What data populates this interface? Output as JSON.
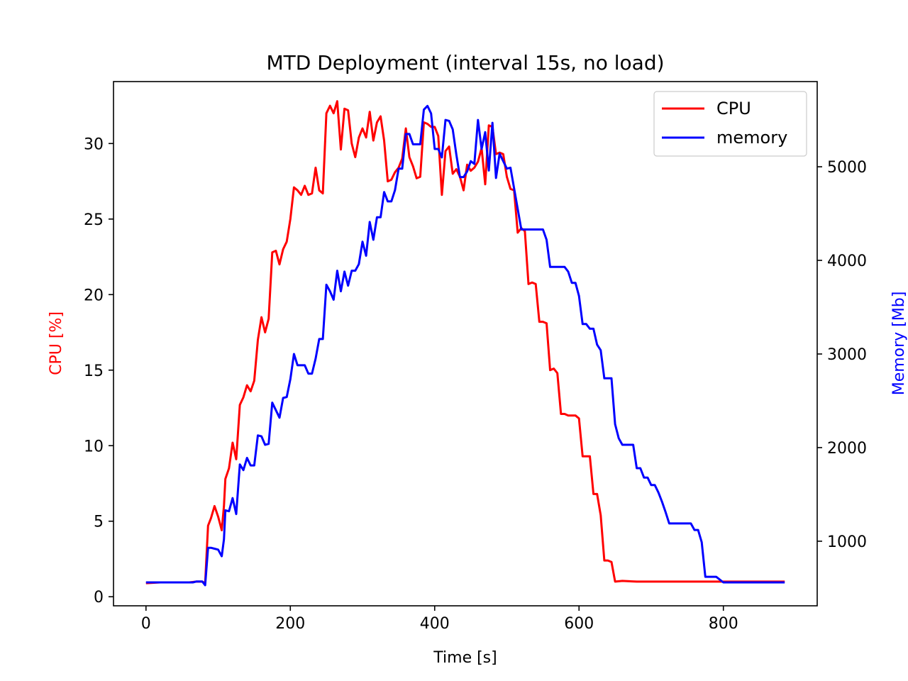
{
  "chart_data": {
    "type": "line",
    "title": "MTD Deployment (interval 15s, no load)",
    "xlabel": "Time [s]",
    "ylabel_left": "CPU [%]",
    "ylabel_right": "Memory [Mb]",
    "xlim": [
      -45,
      930
    ],
    "ylim_left": [
      -0.6,
      34.1
    ],
    "ylim_right": [
      310,
      5910
    ],
    "x_ticks": [
      0,
      200,
      400,
      600,
      800
    ],
    "y_ticks_left": [
      0,
      5,
      10,
      15,
      20,
      25,
      30
    ],
    "y_ticks_right": [
      1000,
      2000,
      3000,
      4000,
      5000
    ],
    "legend_position": "top-right",
    "grid": false,
    "series": [
      {
        "name": "CPU",
        "axis": "left",
        "color": "#ff0000",
        "points": [
          [
            0,
            0.9
          ],
          [
            20,
            0.95
          ],
          [
            40,
            0.95
          ],
          [
            60,
            0.95
          ],
          [
            70,
            1.0
          ],
          [
            78,
            1.0
          ],
          [
            82,
            0.9
          ],
          [
            86,
            4.7
          ],
          [
            90,
            5.2
          ],
          [
            95,
            6.0
          ],
          [
            100,
            5.3
          ],
          [
            105,
            4.4
          ],
          [
            108,
            6.0
          ],
          [
            110,
            7.8
          ],
          [
            115,
            8.5
          ],
          [
            120,
            10.2
          ],
          [
            125,
            9.1
          ],
          [
            130,
            12.7
          ],
          [
            135,
            13.2
          ],
          [
            140,
            14.0
          ],
          [
            145,
            13.6
          ],
          [
            150,
            14.3
          ],
          [
            155,
            17.0
          ],
          [
            160,
            18.5
          ],
          [
            165,
            17.5
          ],
          [
            170,
            18.4
          ],
          [
            175,
            22.8
          ],
          [
            180,
            22.9
          ],
          [
            185,
            22.0
          ],
          [
            190,
            23.0
          ],
          [
            195,
            23.5
          ],
          [
            200,
            25.0
          ],
          [
            205,
            27.1
          ],
          [
            210,
            26.9
          ],
          [
            215,
            26.6
          ],
          [
            220,
            27.2
          ],
          [
            225,
            26.6
          ],
          [
            230,
            26.7
          ],
          [
            235,
            28.4
          ],
          [
            240,
            26.9
          ],
          [
            245,
            26.7
          ],
          [
            250,
            32.0
          ],
          [
            255,
            32.5
          ],
          [
            260,
            32.0
          ],
          [
            265,
            32.8
          ],
          [
            270,
            29.6
          ],
          [
            275,
            32.3
          ],
          [
            280,
            32.2
          ],
          [
            285,
            30.0
          ],
          [
            290,
            29.1
          ],
          [
            295,
            30.4
          ],
          [
            300,
            31.0
          ],
          [
            305,
            30.4
          ],
          [
            310,
            32.1
          ],
          [
            315,
            30.2
          ],
          [
            320,
            31.4
          ],
          [
            325,
            31.8
          ],
          [
            330,
            30.2
          ],
          [
            335,
            27.5
          ],
          [
            340,
            27.6
          ],
          [
            345,
            28.1
          ],
          [
            350,
            28.4
          ],
          [
            355,
            29.0
          ],
          [
            360,
            31.0
          ],
          [
            365,
            29.1
          ],
          [
            370,
            28.5
          ],
          [
            375,
            27.7
          ],
          [
            380,
            27.8
          ],
          [
            385,
            31.4
          ],
          [
            390,
            31.3
          ],
          [
            395,
            31.1
          ],
          [
            400,
            31.1
          ],
          [
            405,
            30.5
          ],
          [
            410,
            26.6
          ],
          [
            415,
            29.5
          ],
          [
            420,
            29.8
          ],
          [
            425,
            28.0
          ],
          [
            430,
            28.3
          ],
          [
            435,
            27.8
          ],
          [
            440,
            26.9
          ],
          [
            445,
            28.6
          ],
          [
            450,
            28.2
          ],
          [
            455,
            28.4
          ],
          [
            460,
            28.8
          ],
          [
            465,
            29.7
          ],
          [
            470,
            27.3
          ],
          [
            475,
            31.2
          ],
          [
            480,
            31.1
          ],
          [
            485,
            29.3
          ],
          [
            490,
            29.4
          ],
          [
            495,
            29.3
          ],
          [
            500,
            27.8
          ],
          [
            505,
            27.0
          ],
          [
            510,
            26.9
          ],
          [
            515,
            24.1
          ],
          [
            520,
            24.4
          ],
          [
            525,
            24.2
          ],
          [
            530,
            20.7
          ],
          [
            535,
            20.8
          ],
          [
            540,
            20.7
          ],
          [
            545,
            18.2
          ],
          [
            550,
            18.2
          ],
          [
            555,
            18.1
          ],
          [
            560,
            15.0
          ],
          [
            565,
            15.1
          ],
          [
            570,
            14.8
          ],
          [
            575,
            12.1
          ],
          [
            580,
            12.1
          ],
          [
            585,
            12.0
          ],
          [
            590,
            12.0
          ],
          [
            595,
            12.0
          ],
          [
            600,
            11.8
          ],
          [
            605,
            9.3
          ],
          [
            610,
            9.3
          ],
          [
            615,
            9.3
          ],
          [
            620,
            6.8
          ],
          [
            625,
            6.8
          ],
          [
            630,
            5.4
          ],
          [
            635,
            2.4
          ],
          [
            640,
            2.4
          ],
          [
            645,
            2.3
          ],
          [
            650,
            1.0
          ],
          [
            660,
            1.05
          ],
          [
            680,
            1.0
          ],
          [
            700,
            1.0
          ],
          [
            720,
            1.0
          ],
          [
            740,
            1.0
          ],
          [
            760,
            1.0
          ],
          [
            780,
            1.0
          ],
          [
            800,
            1.0
          ],
          [
            820,
            1.0
          ],
          [
            840,
            1.0
          ],
          [
            860,
            1.0
          ],
          [
            885,
            1.0
          ]
        ]
      },
      {
        "name": "memory",
        "axis": "right",
        "color": "#0000ff",
        "points": [
          [
            0,
            560
          ],
          [
            20,
            560
          ],
          [
            40,
            560
          ],
          [
            60,
            560
          ],
          [
            65,
            560
          ],
          [
            70,
            570
          ],
          [
            78,
            570
          ],
          [
            82,
            530
          ],
          [
            86,
            930
          ],
          [
            90,
            930
          ],
          [
            95,
            920
          ],
          [
            100,
            910
          ],
          [
            105,
            840
          ],
          [
            108,
            1020
          ],
          [
            110,
            1330
          ],
          [
            115,
            1320
          ],
          [
            120,
            1460
          ],
          [
            125,
            1290
          ],
          [
            130,
            1820
          ],
          [
            135,
            1760
          ],
          [
            140,
            1890
          ],
          [
            145,
            1810
          ],
          [
            150,
            1810
          ],
          [
            155,
            2130
          ],
          [
            160,
            2120
          ],
          [
            165,
            2030
          ],
          [
            170,
            2040
          ],
          [
            175,
            2480
          ],
          [
            180,
            2400
          ],
          [
            185,
            2320
          ],
          [
            190,
            2530
          ],
          [
            195,
            2540
          ],
          [
            200,
            2730
          ],
          [
            205,
            3000
          ],
          [
            210,
            2880
          ],
          [
            215,
            2880
          ],
          [
            220,
            2880
          ],
          [
            225,
            2790
          ],
          [
            230,
            2790
          ],
          [
            235,
            2950
          ],
          [
            240,
            3160
          ],
          [
            245,
            3160
          ],
          [
            250,
            3740
          ],
          [
            255,
            3670
          ],
          [
            260,
            3580
          ],
          [
            265,
            3890
          ],
          [
            270,
            3670
          ],
          [
            275,
            3880
          ],
          [
            280,
            3730
          ],
          [
            285,
            3890
          ],
          [
            290,
            3890
          ],
          [
            295,
            3960
          ],
          [
            300,
            4200
          ],
          [
            305,
            4050
          ],
          [
            310,
            4410
          ],
          [
            315,
            4220
          ],
          [
            320,
            4460
          ],
          [
            325,
            4460
          ],
          [
            330,
            4730
          ],
          [
            335,
            4630
          ],
          [
            340,
            4630
          ],
          [
            345,
            4750
          ],
          [
            350,
            4980
          ],
          [
            355,
            4980
          ],
          [
            360,
            5350
          ],
          [
            365,
            5350
          ],
          [
            370,
            5240
          ],
          [
            375,
            5240
          ],
          [
            380,
            5240
          ],
          [
            385,
            5610
          ],
          [
            390,
            5650
          ],
          [
            395,
            5570
          ],
          [
            400,
            5190
          ],
          [
            405,
            5190
          ],
          [
            410,
            5100
          ],
          [
            415,
            5500
          ],
          [
            420,
            5490
          ],
          [
            425,
            5400
          ],
          [
            430,
            5130
          ],
          [
            435,
            4890
          ],
          [
            440,
            4890
          ],
          [
            445,
            4950
          ],
          [
            450,
            5060
          ],
          [
            455,
            5030
          ],
          [
            460,
            5500
          ],
          [
            465,
            5190
          ],
          [
            470,
            5370
          ],
          [
            475,
            4960
          ],
          [
            480,
            5470
          ],
          [
            485,
            4880
          ],
          [
            490,
            5140
          ],
          [
            495,
            5060
          ],
          [
            500,
            4980
          ],
          [
            505,
            4990
          ],
          [
            510,
            4770
          ],
          [
            515,
            4550
          ],
          [
            520,
            4330
          ],
          [
            530,
            4330
          ],
          [
            540,
            4330
          ],
          [
            550,
            4330
          ],
          [
            555,
            4220
          ],
          [
            560,
            3930
          ],
          [
            570,
            3930
          ],
          [
            580,
            3930
          ],
          [
            585,
            3880
          ],
          [
            590,
            3760
          ],
          [
            595,
            3760
          ],
          [
            600,
            3620
          ],
          [
            605,
            3320
          ],
          [
            610,
            3320
          ],
          [
            615,
            3270
          ],
          [
            620,
            3270
          ],
          [
            625,
            3100
          ],
          [
            630,
            3040
          ],
          [
            635,
            2740
          ],
          [
            645,
            2740
          ],
          [
            650,
            2250
          ],
          [
            655,
            2100
          ],
          [
            660,
            2030
          ],
          [
            665,
            2030
          ],
          [
            670,
            2030
          ],
          [
            675,
            2030
          ],
          [
            680,
            1780
          ],
          [
            685,
            1780
          ],
          [
            690,
            1680
          ],
          [
            695,
            1680
          ],
          [
            700,
            1600
          ],
          [
            705,
            1600
          ],
          [
            710,
            1520
          ],
          [
            715,
            1420
          ],
          [
            720,
            1310
          ],
          [
            725,
            1190
          ],
          [
            730,
            1190
          ],
          [
            740,
            1190
          ],
          [
            750,
            1190
          ],
          [
            755,
            1190
          ],
          [
            760,
            1120
          ],
          [
            765,
            1120
          ],
          [
            770,
            990
          ],
          [
            775,
            620
          ],
          [
            780,
            620
          ],
          [
            790,
            620
          ],
          [
            800,
            560
          ],
          [
            820,
            560
          ],
          [
            840,
            560
          ],
          [
            860,
            560
          ],
          [
            885,
            560
          ]
        ]
      }
    ]
  }
}
